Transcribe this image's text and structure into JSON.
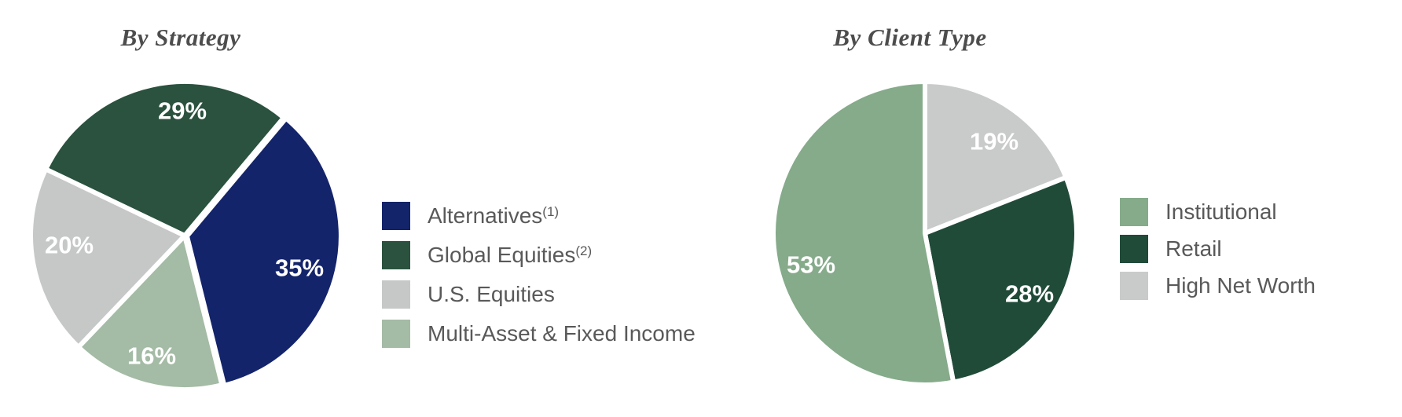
{
  "figure": {
    "background": "#ffffff",
    "title_color": "#4d4d4d",
    "legend_text_color": "#595959",
    "slice_gap_color": "#ffffff",
    "data_label_color": "#ffffff"
  },
  "chart_data": [
    {
      "type": "pie",
      "title": "By Strategy",
      "legend_position": "right",
      "slices": [
        {
          "label": "Alternatives",
          "sup": "(1)",
          "value": 35,
          "pct_label": "35%",
          "color": "#14246a"
        },
        {
          "label": "Global Equities",
          "sup": "(2)",
          "value": 29,
          "pct_label": "29%",
          "color": "#2a523e"
        },
        {
          "label": "U.S. Equities",
          "sup": "",
          "value": 20,
          "pct_label": "20%",
          "color": "#c6c7c7"
        },
        {
          "label": "Multi-Asset & Fixed Income",
          "sup": "",
          "value": 16,
          "pct_label": "16%",
          "color": "#a4bba5"
        }
      ]
    },
    {
      "type": "pie",
      "title": "By Client Type",
      "legend_position": "right",
      "slices": [
        {
          "label": "Institutional",
          "sup": "",
          "value": 53,
          "pct_label": "53%",
          "color": "#85ab8a"
        },
        {
          "label": "Retail",
          "sup": "",
          "value": 28,
          "pct_label": "28%",
          "color": "#214b39"
        },
        {
          "label": "High Net Worth",
          "sup": "",
          "value": 19,
          "pct_label": "19%",
          "color": "#c9caca"
        }
      ]
    }
  ]
}
